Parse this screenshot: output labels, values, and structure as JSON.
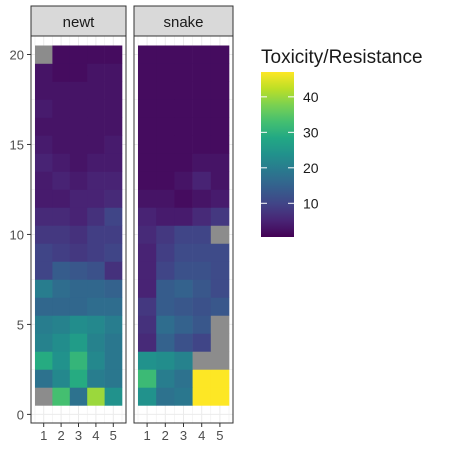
{
  "chart_data": {
    "type": "heatmap",
    "facets": [
      "newt",
      "snake"
    ],
    "x": [
      1,
      2,
      3,
      4,
      5
    ],
    "y": [
      1,
      2,
      3,
      4,
      5,
      6,
      7,
      8,
      9,
      10,
      11,
      12,
      13,
      14,
      15,
      16,
      17,
      18,
      19,
      20
    ],
    "x_ticks": [
      "1",
      "2",
      "3",
      "4",
      "5"
    ],
    "y_ticks": [
      "0",
      "5",
      "10",
      "15",
      "20"
    ],
    "xlim": [
      0.5,
      5.5
    ],
    "ylim": [
      0,
      21
    ],
    "legend": {
      "title": "Toxicity/Resistance",
      "ticks": [
        "10",
        "20",
        "30",
        "40"
      ],
      "tick_values": [
        10,
        20,
        30,
        40
      ],
      "range": [
        0.5,
        47
      ],
      "placement": "right"
    },
    "colors": {
      "na": "#8c8c8c",
      "panel_bg": "#ffffff",
      "grid": "#ebebeb",
      "strip_bg": "#d9d9d9",
      "panel_border": "#333333"
    },
    "grid": true,
    "values": {
      "newt": [
        [
          null,
          33,
          18,
          40,
          24
        ],
        [
          18,
          22,
          29,
          20,
          19
        ],
        [
          29,
          24,
          31,
          22,
          19
        ],
        [
          21,
          23,
          26,
          21,
          19
        ],
        [
          20,
          21,
          23,
          22,
          20
        ],
        [
          16,
          16,
          16,
          17,
          17
        ],
        [
          20,
          17,
          16,
          16,
          15
        ],
        [
          10,
          14,
          13,
          12,
          7
        ],
        [
          10,
          9,
          8,
          9,
          10
        ],
        [
          8,
          8,
          7,
          9,
          9
        ],
        [
          6,
          6,
          5,
          7,
          10
        ],
        [
          4,
          4,
          5,
          5,
          6
        ],
        [
          4,
          5,
          4,
          5,
          5
        ],
        [
          5,
          4,
          3,
          4,
          4
        ],
        [
          4,
          3,
          3,
          3,
          4
        ],
        [
          3,
          3,
          3,
          3,
          3
        ],
        [
          4,
          3,
          3,
          3,
          3
        ],
        [
          3,
          3,
          3,
          3,
          3
        ],
        [
          3,
          2,
          2,
          3,
          3
        ],
        [
          null,
          2,
          2,
          2,
          2
        ]
      ],
      "snake": [
        [
          24,
          18,
          19,
          47,
          47
        ],
        [
          32,
          20,
          18,
          47,
          47
        ],
        [
          24,
          23,
          21,
          null,
          null
        ],
        [
          6,
          15,
          12,
          10,
          null
        ],
        [
          7,
          17,
          15,
          13,
          null
        ],
        [
          8,
          14,
          13,
          12,
          13
        ],
        [
          5,
          14,
          15,
          13,
          11
        ],
        [
          5,
          10,
          12,
          12,
          11
        ],
        [
          5,
          9,
          11,
          11,
          11
        ],
        [
          6,
          8,
          10,
          10,
          null
        ],
        [
          5,
          4,
          4,
          6,
          8
        ],
        [
          3,
          3,
          2,
          3,
          4
        ],
        [
          2,
          2,
          3,
          5,
          3
        ],
        [
          2,
          2,
          2,
          3,
          3
        ],
        [
          2,
          2,
          2,
          2,
          2
        ],
        [
          2,
          2,
          2,
          2,
          2
        ],
        [
          2,
          2,
          2,
          2,
          2
        ],
        [
          2,
          2,
          2,
          2,
          2
        ],
        [
          2,
          2,
          2,
          2,
          2
        ],
        [
          2,
          2,
          2,
          2,
          2
        ]
      ]
    }
  }
}
